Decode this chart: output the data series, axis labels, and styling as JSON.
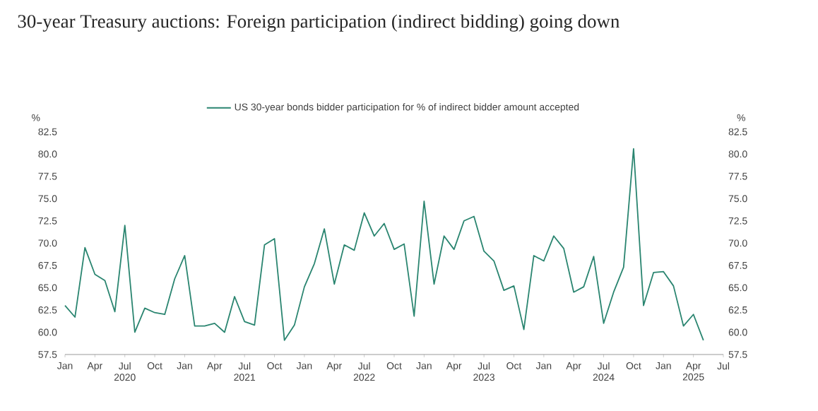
{
  "chart_data": {
    "type": "line",
    "title": "30-year Treasury auctions: Foreign participation (indirect bidding) going down",
    "ylabel": "%",
    "y2label": "%",
    "x": [
      "2020-01",
      "2020-02",
      "2020-03",
      "2020-04",
      "2020-05",
      "2020-06",
      "2020-07",
      "2020-08",
      "2020-09",
      "2020-10",
      "2020-11",
      "2020-12",
      "2021-01",
      "2021-02",
      "2021-03",
      "2021-04",
      "2021-05",
      "2021-06",
      "2021-07",
      "2021-08",
      "2021-09",
      "2021-10",
      "2021-11",
      "2021-12",
      "2022-01",
      "2022-02",
      "2022-03",
      "2022-04",
      "2022-05",
      "2022-06",
      "2022-07",
      "2022-08",
      "2022-09",
      "2022-10",
      "2022-11",
      "2022-12",
      "2023-01",
      "2023-02",
      "2023-03",
      "2023-04",
      "2023-05",
      "2023-06",
      "2023-07",
      "2023-08",
      "2023-09",
      "2023-10",
      "2023-11",
      "2023-12",
      "2024-01",
      "2024-02",
      "2024-03",
      "2024-04",
      "2024-05",
      "2024-06",
      "2024-07",
      "2024-08",
      "2024-09",
      "2024-10",
      "2024-11",
      "2024-12",
      "2025-01",
      "2025-02",
      "2025-03",
      "2025-04",
      "2025-05"
    ],
    "series": [
      {
        "name": "US 30-year bonds bidder participation for % of indirect bidder amount accepted",
        "color": "#2a8570",
        "values": [
          63.0,
          61.7,
          69.5,
          66.5,
          65.8,
          62.3,
          72.0,
          60.0,
          62.7,
          62.2,
          62.0,
          66.0,
          68.6,
          60.7,
          60.7,
          61.0,
          60.0,
          64.0,
          61.2,
          60.8,
          69.8,
          70.5,
          59.1,
          60.8,
          65.1,
          67.7,
          71.6,
          65.4,
          69.8,
          69.2,
          73.4,
          70.8,
          72.2,
          69.3,
          69.9,
          61.8,
          74.7,
          65.4,
          70.8,
          69.3,
          72.5,
          73.0,
          69.1,
          68.0,
          64.7,
          65.2,
          60.3,
          68.6,
          68.0,
          70.8,
          69.4,
          64.5,
          65.1,
          68.5,
          61.0,
          64.5,
          67.3,
          80.6,
          63.0,
          66.7,
          66.8,
          65.2,
          60.7,
          62.0,
          59.1
        ]
      }
    ],
    "xlim": [
      "2020-01",
      "2025-07"
    ],
    "xticks": [
      {
        "value": "2020-01",
        "label": "Jan"
      },
      {
        "value": "2020-04",
        "label": "Apr"
      },
      {
        "value": "2020-07",
        "label": "Jul 2020"
      },
      {
        "value": "2020-10",
        "label": "Oct"
      },
      {
        "value": "2021-01",
        "label": "Jan"
      },
      {
        "value": "2021-04",
        "label": "Apr"
      },
      {
        "value": "2021-07",
        "label": "Jul 2021"
      },
      {
        "value": "2021-10",
        "label": "Oct"
      },
      {
        "value": "2022-01",
        "label": "Jan"
      },
      {
        "value": "2022-04",
        "label": "Apr"
      },
      {
        "value": "2022-07",
        "label": "Jul 2022"
      },
      {
        "value": "2022-10",
        "label": "Oct"
      },
      {
        "value": "2023-01",
        "label": "Jan"
      },
      {
        "value": "2023-04",
        "label": "Apr"
      },
      {
        "value": "2023-07",
        "label": "Jul 2023"
      },
      {
        "value": "2023-10",
        "label": "Oct"
      },
      {
        "value": "2024-01",
        "label": "Jan"
      },
      {
        "value": "2024-04",
        "label": "Apr"
      },
      {
        "value": "2024-07",
        "label": "Jul 2024"
      },
      {
        "value": "2024-10",
        "label": "Oct"
      },
      {
        "value": "2025-01",
        "label": "Jan"
      },
      {
        "value": "2025-04",
        "label": "Apr 2025"
      },
      {
        "value": "2025-07",
        "label": "Jul"
      }
    ],
    "ylim": [
      57.5,
      82.5
    ],
    "yticks": [
      {
        "value": 57.5,
        "label": "57.5"
      },
      {
        "value": 60,
        "label": "60.0"
      },
      {
        "value": 62.5,
        "label": "62.5"
      },
      {
        "value": 65,
        "label": "65.0"
      },
      {
        "value": 67.5,
        "label": "67.5"
      },
      {
        "value": 70,
        "label": "70.0"
      },
      {
        "value": 72.5,
        "label": "72.5"
      },
      {
        "value": 75,
        "label": "75.0"
      },
      {
        "value": 77.5,
        "label": "77.5"
      },
      {
        "value": 80,
        "label": "80.0"
      },
      {
        "value": 82.5,
        "label": "82.5"
      }
    ],
    "y2lim": [
      57.5,
      82.5
    ],
    "y2ticks": [
      {
        "value": 57.5,
        "label": "57.5"
      },
      {
        "value": 60,
        "label": "60.0"
      },
      {
        "value": 62.5,
        "label": "62.5"
      },
      {
        "value": 65,
        "label": "65.0"
      },
      {
        "value": 67.5,
        "label": "67.5"
      },
      {
        "value": 70,
        "label": "70.0"
      },
      {
        "value": 72.5,
        "label": "72.5"
      },
      {
        "value": 75,
        "label": "75.0"
      },
      {
        "value": 77.5,
        "label": "77.5"
      },
      {
        "value": 80,
        "label": "80.0"
      },
      {
        "value": 82.5,
        "label": "82.5"
      }
    ],
    "legend": "top",
    "grid": false
  }
}
